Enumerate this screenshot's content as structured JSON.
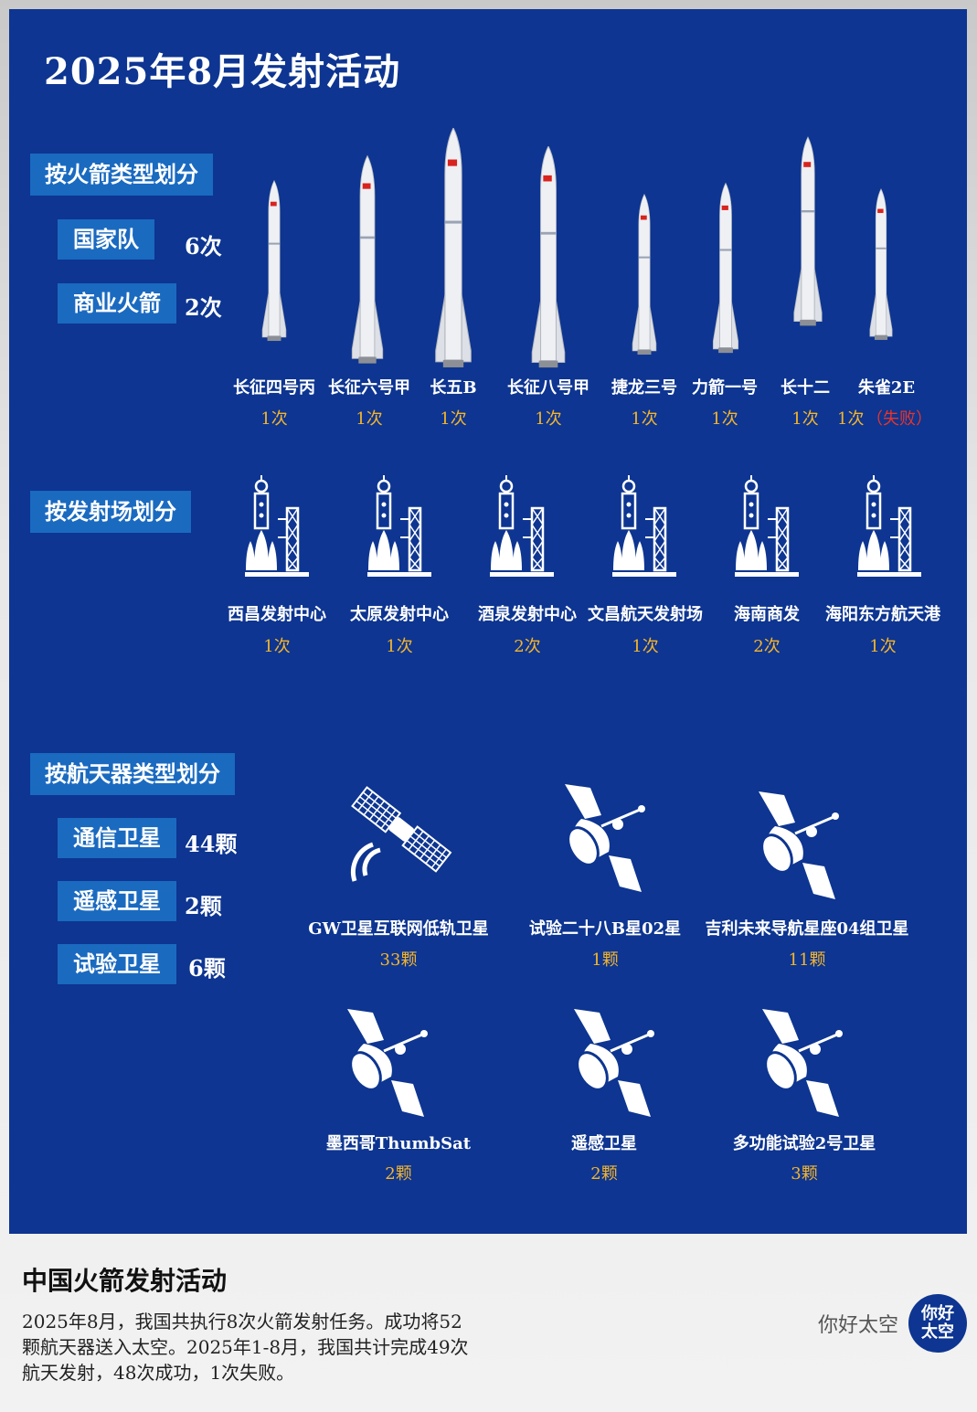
{
  "title": "2025年8月发射活动",
  "by_rocket": {
    "header": "按火箭类型划分",
    "groups": [
      {
        "label": "国家队",
        "count": "6次"
      },
      {
        "label": "商业火箭",
        "count": "2次"
      }
    ],
    "rockets": [
      {
        "name": "长征四号丙",
        "count": "1次",
        "note": ""
      },
      {
        "name": "长征六号甲",
        "count": "1次",
        "note": ""
      },
      {
        "name": "长五B",
        "count": "1次",
        "note": ""
      },
      {
        "name": "长征八号甲",
        "count": "1次",
        "note": ""
      },
      {
        "name": "捷龙三号",
        "count": "1次",
        "note": ""
      },
      {
        "name": "力箭一号",
        "count": "1次",
        "note": ""
      },
      {
        "name": "长十二",
        "count": "1次",
        "note": ""
      },
      {
        "name": "朱雀2E",
        "count": "1次",
        "note": "（失败）"
      }
    ]
  },
  "by_site": {
    "header": "按发射场划分",
    "sites": [
      {
        "name": "西昌发射中心",
        "count": "1次"
      },
      {
        "name": "太原发射中心",
        "count": "1次"
      },
      {
        "name": "酒泉发射中心",
        "count": "2次"
      },
      {
        "name": "文昌航天发射场",
        "count": "1次"
      },
      {
        "name": "海南商发",
        "count": "2次"
      },
      {
        "name": "海阳东方航天港",
        "count": "1次"
      }
    ]
  },
  "by_spacecraft": {
    "header": "按航天器类型划分",
    "groups": [
      {
        "label": "通信卫星",
        "count": "44颗"
      },
      {
        "label": "遥感卫星",
        "count": "2颗"
      },
      {
        "label": "试验卫星",
        "count": "6颗"
      }
    ],
    "items": [
      {
        "name": "GW卫星互联网低轨卫星",
        "count": "33颗",
        "icon": "internet-satellite-icon"
      },
      {
        "name": "试验二十八B星02星",
        "count": "1颗",
        "icon": "satellite-dish-icon"
      },
      {
        "name": "吉利未来导航星座04组卫星",
        "count": "11颗",
        "icon": "satellite-dish-icon"
      },
      {
        "name": "墨西哥ThumbSat",
        "count": "2颗",
        "icon": "satellite-dish-icon"
      },
      {
        "name": "遥感卫星",
        "count": "2颗",
        "icon": "satellite-dish-icon"
      },
      {
        "name": "多功能试验2号卫星",
        "count": "3颗",
        "icon": "satellite-dish-icon"
      }
    ]
  },
  "footer": {
    "title": "中国火箭发射活动",
    "text": "2025年8月，我国共执行8次火箭发射任务。成功将52颗航天器送入太空。2025年1-8月，我国共计完成49次航天发射，48次成功，1次失败。",
    "brand": "你好太空",
    "logo_text": "你好太空"
  },
  "colors": {
    "background": "#0d3591",
    "accent": "#1a6ac0",
    "count": "#f5b52b",
    "fail": "#e8342a"
  }
}
